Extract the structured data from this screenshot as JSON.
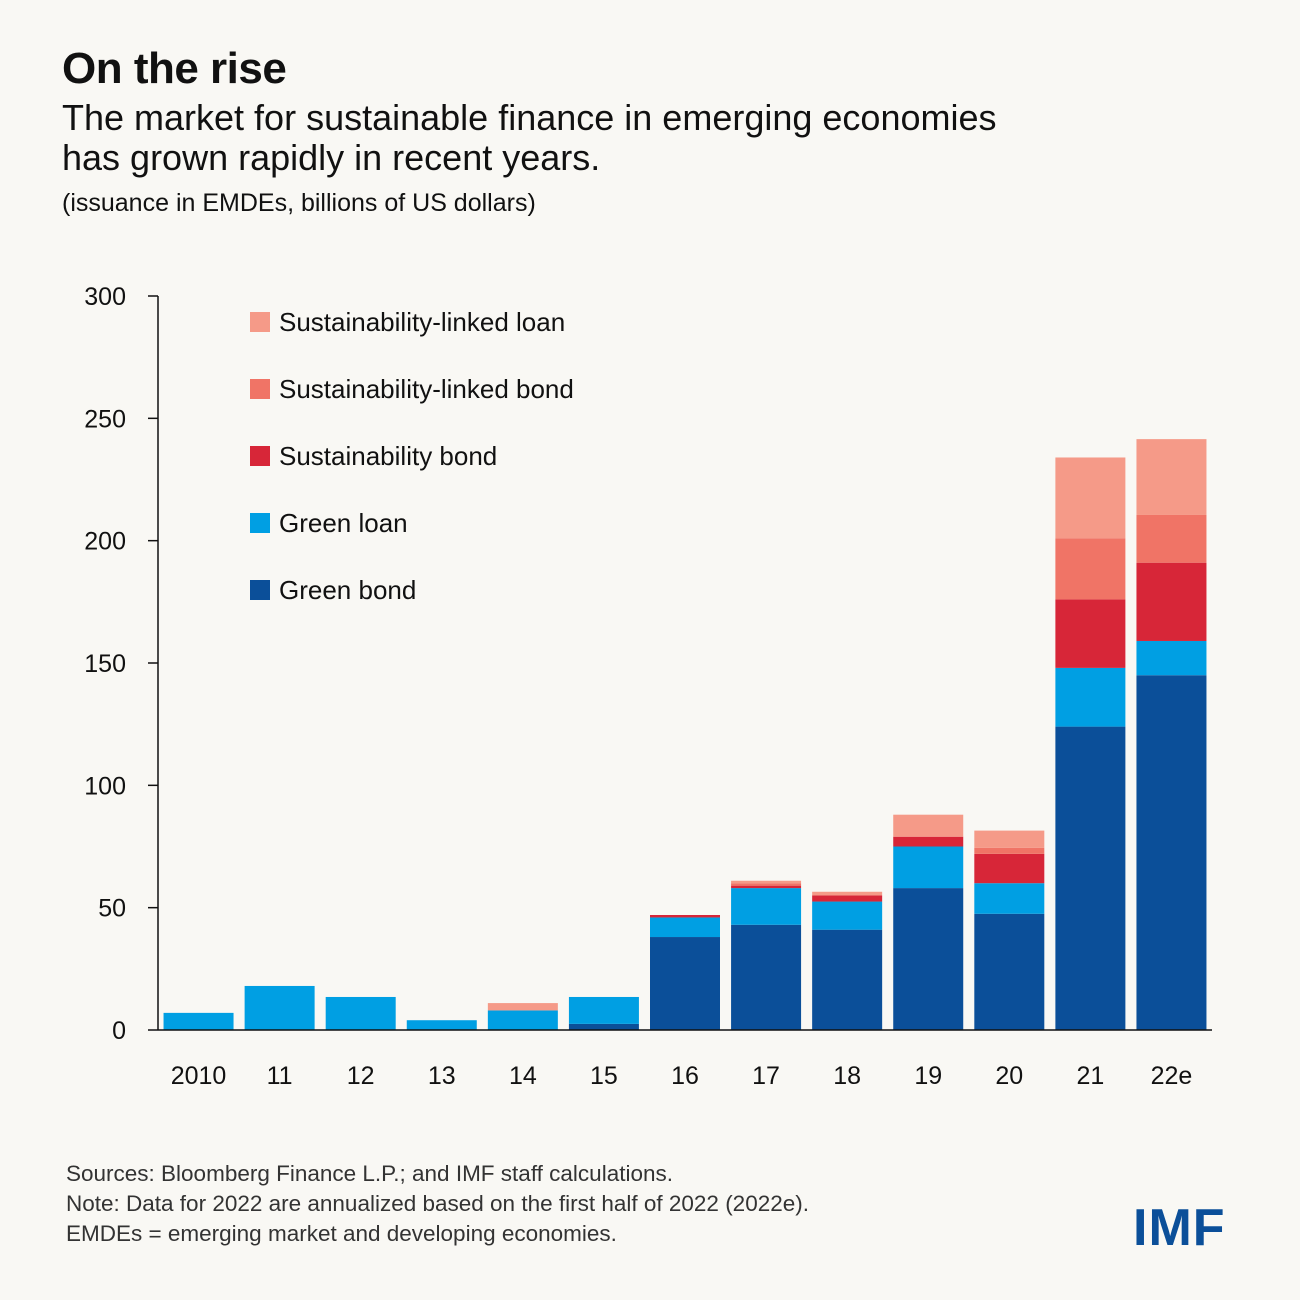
{
  "header": {
    "title": "On the rise",
    "subtitle_line1": "The market for sustainable finance in emerging economies",
    "subtitle_line2": "has grown rapidly in recent years.",
    "units": "(issuance in EMDEs, billions of US dollars)"
  },
  "chart_data": {
    "type": "bar",
    "stacked": true,
    "categories": [
      "2010",
      "11",
      "12",
      "13",
      "14",
      "15",
      "16",
      "17",
      "18",
      "19",
      "20",
      "21",
      "22e"
    ],
    "ylim": [
      0,
      300
    ],
    "yticks": [
      0,
      50,
      100,
      150,
      200,
      250,
      300
    ],
    "grid": false,
    "legend_position": "top-left",
    "series": [
      {
        "name": "Green bond",
        "color": "#0b4f99",
        "values": [
          0,
          0,
          0,
          0,
          0,
          2.5,
          38,
          43,
          41,
          58,
          47.5,
          124,
          145
        ]
      },
      {
        "name": "Green loan",
        "color": "#009fe3",
        "values": [
          7,
          18,
          13.5,
          4,
          8,
          11,
          8,
          15,
          11.5,
          17,
          12.5,
          24,
          14
        ]
      },
      {
        "name": "Sustainability bond",
        "color": "#d72638",
        "values": [
          0,
          0,
          0,
          0,
          0,
          0,
          1,
          1,
          2.5,
          4,
          12,
          28,
          32
        ]
      },
      {
        "name": "Sustainability-linked bond",
        "color": "#f07466",
        "values": [
          0,
          0,
          0,
          0,
          0,
          0,
          0,
          1,
          0,
          0,
          2.5,
          25,
          19.5
        ]
      },
      {
        "name": "Sustainability-linked loan",
        "color": "#f59a88",
        "values": [
          0,
          0,
          0,
          0,
          3,
          0,
          0,
          1,
          1.5,
          9,
          7,
          33,
          31
        ]
      }
    ],
    "legend_order": [
      "Sustainability-linked loan",
      "Sustainability-linked bond",
      "Sustainability bond",
      "Green loan",
      "Green bond"
    ]
  },
  "footer": {
    "sources": "Sources: Bloomberg Finance L.P.; and IMF staff calculations.",
    "note": "Note: Data for 2022 are annualized based on the first half of 2022 (2022e).",
    "abbrev": "EMDEs = emerging market and developing economies.",
    "logo": "IMF"
  }
}
